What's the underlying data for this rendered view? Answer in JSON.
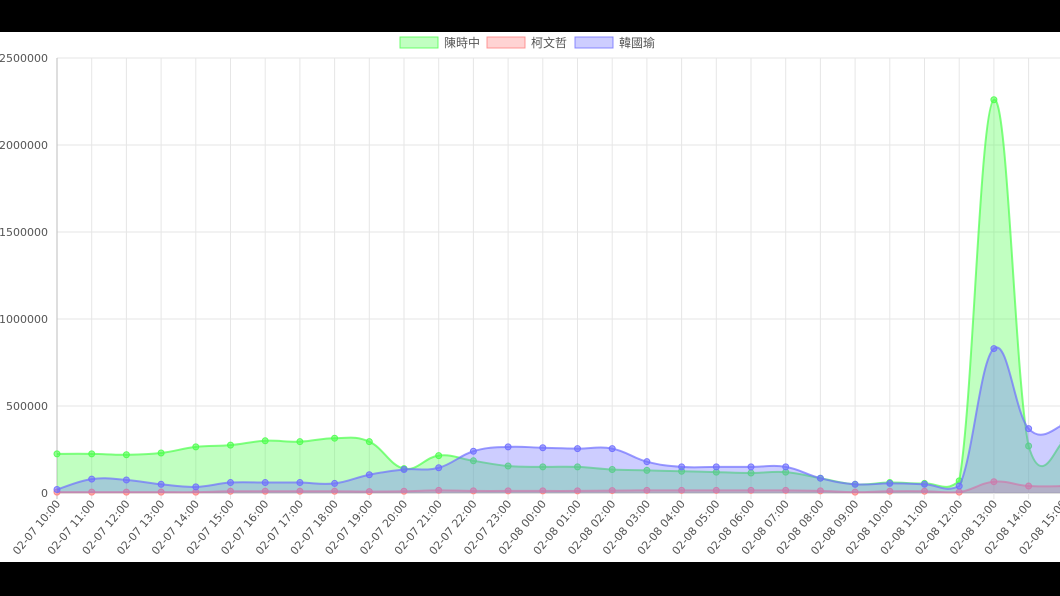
{
  "chart_data": {
    "type": "area",
    "title": "",
    "xlabel": "",
    "ylabel": "",
    "ylim": [
      0,
      2500000
    ],
    "yticks": [
      0,
      500000,
      1000000,
      1500000,
      2000000,
      2500000
    ],
    "ytick_labels": [
      "0",
      "500000",
      "1000000",
      "1500000",
      "2000000",
      "2500000"
    ],
    "grid": true,
    "legend_position": "top",
    "x": [
      "02-07 10:00",
      "02-07 11:00",
      "02-07 12:00",
      "02-07 13:00",
      "02-07 14:00",
      "02-07 15:00",
      "02-07 16:00",
      "02-07 17:00",
      "02-07 18:00",
      "02-07 19:00",
      "02-07 20:00",
      "02-07 21:00",
      "02-07 22:00",
      "02-07 23:00",
      "02-08 00:00",
      "02-08 01:00",
      "02-08 02:00",
      "02-08 03:00",
      "02-08 04:00",
      "02-08 05:00",
      "02-08 06:00",
      "02-08 07:00",
      "02-08 08:00",
      "02-08 09:00",
      "02-08 10:00",
      "02-08 11:00",
      "02-08 12:00",
      "02-08 13:00",
      "02-08 14:00",
      "02-08 15:00"
    ],
    "series": [
      {
        "name": "陳時中",
        "color": "#4dff4d",
        "values": [
          225000,
          225000,
          220000,
          230000,
          265000,
          275000,
          300000,
          295000,
          315000,
          295000,
          140000,
          215000,
          185000,
          155000,
          150000,
          150000,
          135000,
          130000,
          125000,
          120000,
          115000,
          120000,
          85000,
          50000,
          60000,
          55000,
          70000,
          2260000,
          270000,
          290000
        ]
      },
      {
        "name": "柯文哲",
        "color": "#ff8080",
        "values": [
          5000,
          5000,
          5000,
          5000,
          5000,
          10000,
          10000,
          10000,
          10000,
          8000,
          10000,
          15000,
          12000,
          12000,
          12000,
          12000,
          14000,
          15000,
          15000,
          15000,
          15000,
          15000,
          12000,
          5000,
          10000,
          10000,
          5000,
          65000,
          40000,
          40000
        ]
      },
      {
        "name": "韓國瑜",
        "color": "#6f6fff",
        "values": [
          20000,
          80000,
          75000,
          50000,
          35000,
          60000,
          60000,
          60000,
          55000,
          105000,
          135000,
          145000,
          240000,
          265000,
          260000,
          255000,
          255000,
          180000,
          150000,
          150000,
          150000,
          150000,
          85000,
          50000,
          55000,
          50000,
          40000,
          830000,
          370000,
          390000
        ]
      }
    ]
  }
}
